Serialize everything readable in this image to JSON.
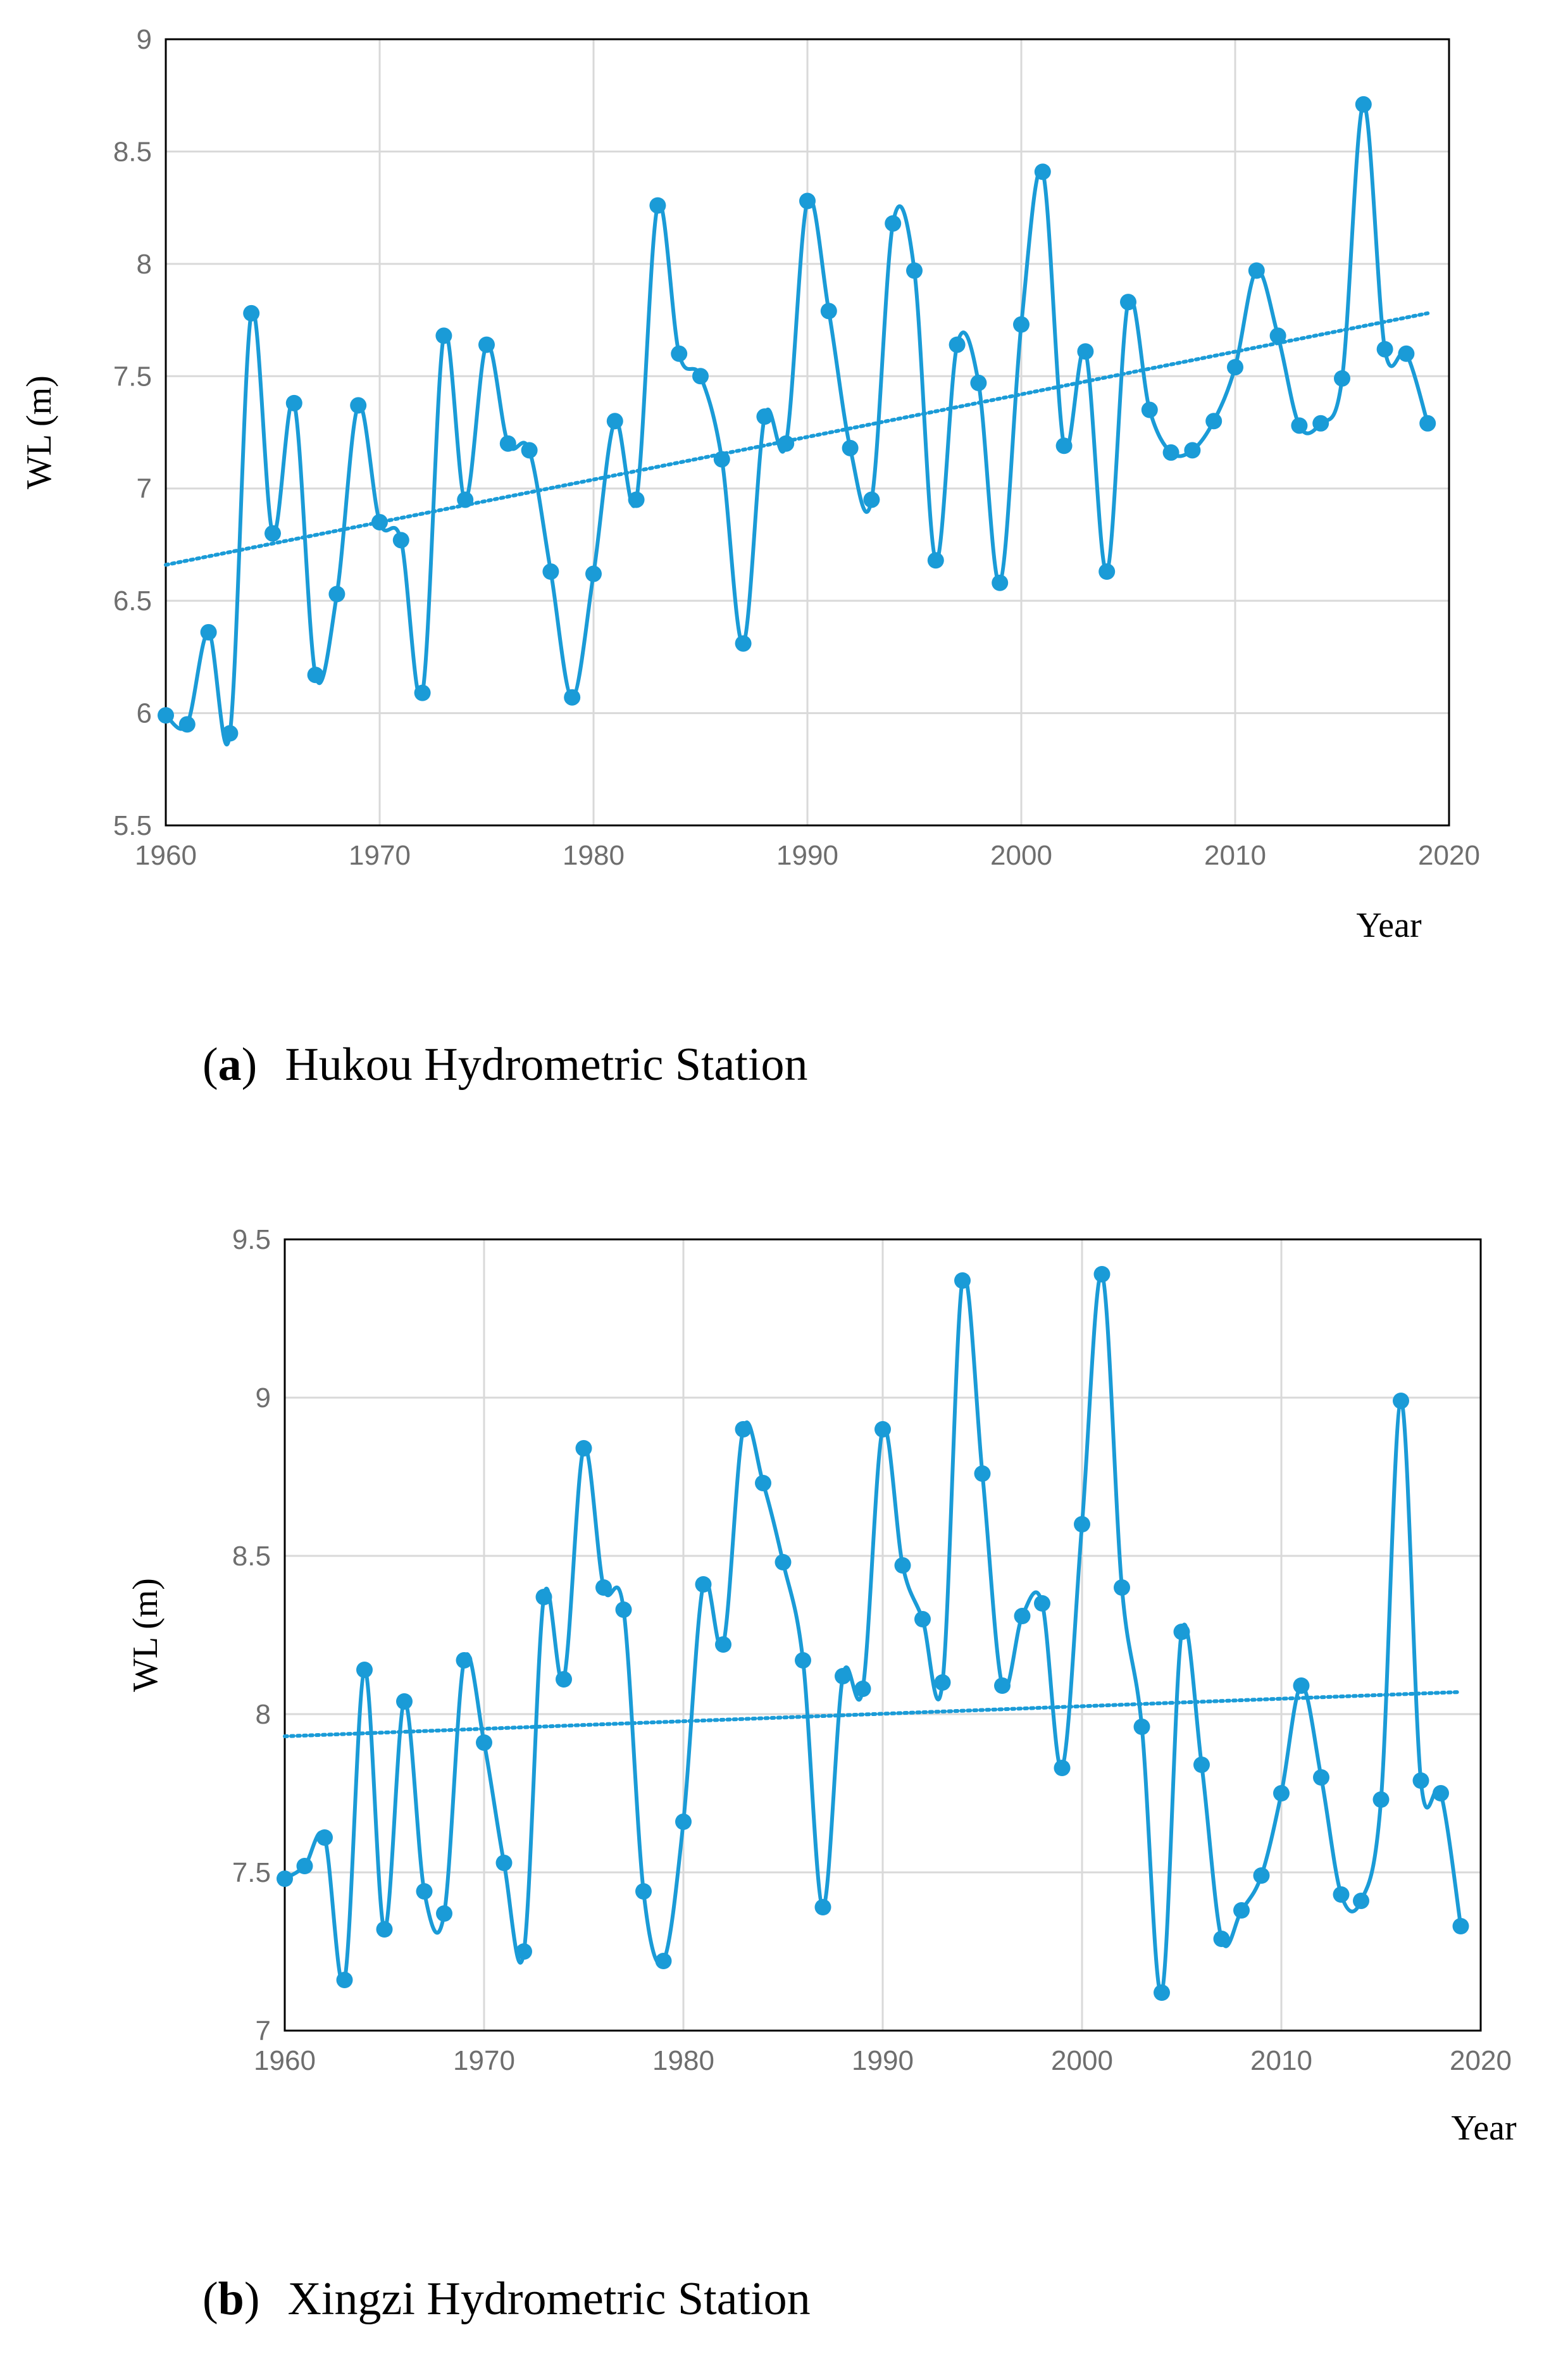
{
  "style": {
    "series_color": "#1a9bd7",
    "grid_color": "#d9d9d9",
    "frame_color": "#000000"
  },
  "chart_data": [
    {
      "id": "a",
      "type": "line",
      "caption": {
        "open": "(",
        "tag": "a",
        "close": ")",
        "text": "Hukou Hydrometric Station"
      },
      "xlabel": "Year",
      "ylabel": "WL (m)",
      "xlim": [
        1960,
        2020
      ],
      "ylim": [
        5.5,
        9
      ],
      "x_ticks": [
        1960,
        1970,
        1980,
        1990,
        2000,
        2010,
        2020
      ],
      "y_ticks": [
        5.5,
        6,
        6.5,
        7,
        7.5,
        8,
        8.5,
        9
      ],
      "grid": true,
      "series": [
        {
          "name": "WL",
          "x": [
            1960,
            1961,
            1962,
            1963,
            1964,
            1965,
            1966,
            1967,
            1968,
            1969,
            1970,
            1971,
            1972,
            1973,
            1974,
            1975,
            1976,
            1977,
            1978,
            1979,
            1980,
            1981,
            1982,
            1983,
            1984,
            1985,
            1986,
            1987,
            1988,
            1989,
            1990,
            1991,
            1992,
            1993,
            1994,
            1995,
            1996,
            1997,
            1998,
            1999,
            2000,
            2001,
            2002,
            2003,
            2004,
            2005,
            2006,
            2007,
            2008,
            2009,
            2010,
            2011,
            2012,
            2013,
            2014,
            2015,
            2016,
            2017,
            2018,
            2019
          ],
          "values": [
            5.99,
            5.95,
            6.36,
            5.91,
            7.78,
            6.8,
            7.38,
            6.17,
            6.53,
            7.37,
            6.85,
            6.77,
            6.09,
            7.68,
            6.95,
            7.64,
            7.2,
            7.17,
            6.63,
            6.07,
            6.62,
            7.3,
            6.95,
            8.26,
            7.6,
            7.5,
            7.13,
            6.31,
            7.32,
            7.2,
            8.28,
            7.79,
            7.18,
            6.95,
            8.18,
            7.97,
            6.68,
            7.64,
            7.47,
            6.58,
            7.73,
            8.41,
            7.19,
            7.61,
            6.63,
            7.83,
            7.35,
            7.16,
            7.17,
            7.3,
            7.54,
            7.97,
            7.68,
            7.28,
            7.29,
            7.49,
            8.71,
            7.62,
            7.6,
            7.29
          ]
        }
      ],
      "trendline": {
        "type": "linear",
        "start": [
          1960,
          6.66
        ],
        "end": [
          2019,
          7.78
        ]
      }
    },
    {
      "id": "b",
      "type": "line",
      "caption": {
        "open": "(",
        "tag": "b",
        "close": ")",
        "text": "Xingzi Hydrometric Station"
      },
      "xlabel": "Year",
      "ylabel": "WL (m)",
      "xlim": [
        1960,
        2020
      ],
      "ylim": [
        7,
        9.5
      ],
      "x_ticks": [
        1960,
        1970,
        1980,
        1990,
        2000,
        2010,
        2020
      ],
      "y_ticks": [
        7,
        7.5,
        8,
        8.5,
        9,
        9.5
      ],
      "grid": true,
      "series": [
        {
          "name": "WL",
          "x": [
            1960,
            1961,
            1962,
            1963,
            1964,
            1965,
            1966,
            1967,
            1968,
            1969,
            1970,
            1971,
            1972,
            1973,
            1974,
            1975,
            1976,
            1977,
            1978,
            1979,
            1980,
            1981,
            1982,
            1983,
            1984,
            1985,
            1986,
            1987,
            1988,
            1989,
            1990,
            1991,
            1992,
            1993,
            1994,
            1995,
            1996,
            1997,
            1998,
            1999,
            2000,
            2001,
            2002,
            2003,
            2004,
            2005,
            2006,
            2007,
            2008,
            2009,
            2010,
            2011,
            2012,
            2013,
            2014,
            2015,
            2016,
            2017,
            2018,
            2019
          ],
          "values": [
            7.48,
            7.52,
            7.61,
            7.16,
            8.14,
            7.32,
            8.04,
            7.44,
            7.37,
            8.17,
            7.91,
            7.53,
            7.25,
            8.37,
            8.11,
            8.84,
            8.4,
            8.33,
            7.44,
            7.22,
            7.66,
            8.41,
            8.22,
            8.9,
            8.73,
            8.48,
            8.17,
            7.39,
            8.12,
            8.08,
            8.9,
            8.47,
            8.3,
            8.1,
            9.37,
            8.76,
            8.09,
            8.31,
            8.35,
            7.83,
            8.6,
            9.39,
            8.4,
            7.96,
            7.12,
            8.26,
            7.84,
            7.29,
            7.38,
            7.49,
            7.75,
            8.09,
            7.8,
            7.43,
            7.41,
            7.73,
            8.99,
            7.79,
            7.75,
            7.33
          ]
        }
      ],
      "trendline": {
        "type": "linear",
        "start": [
          1960,
          7.93
        ],
        "end": [
          2019,
          8.07
        ]
      }
    }
  ]
}
